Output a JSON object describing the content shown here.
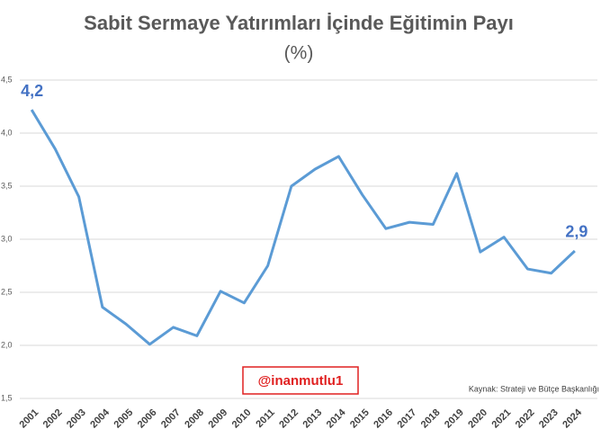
{
  "chart_data": {
    "type": "line",
    "title": "Sabit Sermaye Yatırımları İçinde Eğitimin Payı",
    "subtitle": "(%)",
    "annotations": [
      "@inanmutlu1",
      "Kaynak: Strateji ve Bütçe Başkanlığı"
    ],
    "categories": [
      "2001",
      "2002",
      "2003",
      "2004",
      "2005",
      "2006",
      "2007",
      "2008",
      "2009",
      "2010",
      "2011",
      "2012",
      "2013",
      "2014",
      "2015",
      "2016",
      "2017",
      "2018",
      "2019",
      "2020",
      "2021",
      "2022",
      "2023",
      "2024"
    ],
    "series": [
      {
        "color": "#5b9bd5",
        "values": [
          4.22,
          3.85,
          3.4,
          2.36,
          2.2,
          2.01,
          2.17,
          2.09,
          2.51,
          2.4,
          2.75,
          3.5,
          3.66,
          3.78,
          3.42,
          3.1,
          3.16,
          3.14,
          3.62,
          2.88,
          3.02,
          2.72,
          2.68,
          2.89
        ],
        "value_labels": [
          "4,2",
          null,
          null,
          null,
          null,
          null,
          null,
          null,
          null,
          null,
          null,
          null,
          null,
          null,
          null,
          null,
          null,
          null,
          null,
          null,
          null,
          null,
          null,
          "2,9"
        ]
      }
    ],
    "ylim": [
      1.5,
      4.5
    ],
    "yticks": [
      {
        "value": 1.5,
        "label": "1,5"
      },
      {
        "value": 2.0,
        "label": "2,0"
      },
      {
        "value": 2.5,
        "label": "2,5"
      },
      {
        "value": 3.0,
        "label": "3,0"
      },
      {
        "value": 3.5,
        "label": "3,5"
      },
      {
        "value": 4.0,
        "label": "4,0"
      },
      {
        "value": 4.5,
        "label": "4,5"
      }
    ],
    "grid": true
  }
}
